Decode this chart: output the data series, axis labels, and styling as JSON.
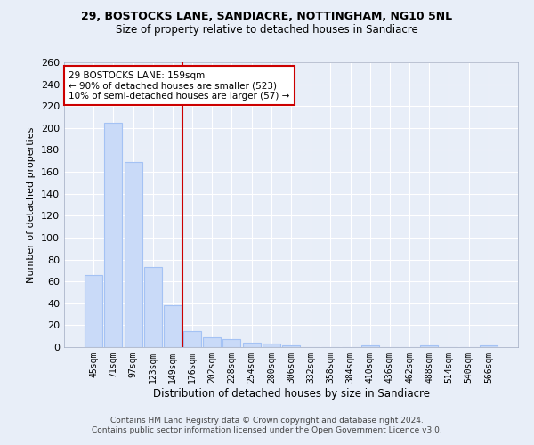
{
  "title1": "29, BOSTOCKS LANE, SANDIACRE, NOTTINGHAM, NG10 5NL",
  "title2": "Size of property relative to detached houses in Sandiacre",
  "xlabel": "Distribution of detached houses by size in Sandiacre",
  "ylabel": "Number of detached properties",
  "categories": [
    "45sqm",
    "71sqm",
    "97sqm",
    "123sqm",
    "149sqm",
    "176sqm",
    "202sqm",
    "228sqm",
    "254sqm",
    "280sqm",
    "306sqm",
    "332sqm",
    "358sqm",
    "384sqm",
    "410sqm",
    "436sqm",
    "462sqm",
    "488sqm",
    "514sqm",
    "540sqm",
    "566sqm"
  ],
  "values": [
    66,
    205,
    169,
    73,
    38,
    15,
    9,
    7,
    4,
    3,
    2,
    0,
    0,
    0,
    2,
    0,
    0,
    2,
    0,
    0,
    2
  ],
  "bar_color": "#c9daf8",
  "bar_edge_color": "#a4c2f4",
  "vline_x": 4.5,
  "vline_color": "#cc0000",
  "annotation_title": "29 BOSTOCKS LANE: 159sqm",
  "annotation_line1": "← 90% of detached houses are smaller (523)",
  "annotation_line2": "10% of semi-detached houses are larger (57) →",
  "annotation_box_color": "#ffffff",
  "annotation_box_edge": "#cc0000",
  "footer1": "Contains HM Land Registry data © Crown copyright and database right 2024.",
  "footer2": "Contains public sector information licensed under the Open Government Licence v3.0.",
  "ylim": [
    0,
    260
  ],
  "yticks": [
    0,
    20,
    40,
    60,
    80,
    100,
    120,
    140,
    160,
    180,
    200,
    220,
    240,
    260
  ],
  "bg_color": "#e8eef8",
  "grid_color": "#ffffff",
  "title1_fontsize": 9,
  "title2_fontsize": 8.5
}
